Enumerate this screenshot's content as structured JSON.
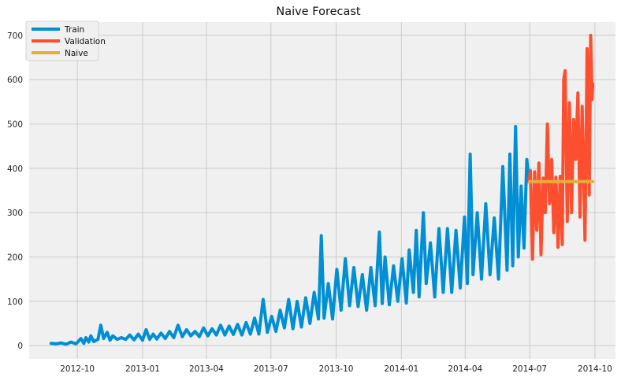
{
  "chart_data": {
    "type": "line",
    "title": "Naive Forecast",
    "xlabel": "",
    "ylabel": "",
    "x_type": "date",
    "xlim": [
      "2012-07-25",
      "2014-10-30"
    ],
    "ylim": [
      -30,
      730
    ],
    "x_ticks": [
      {
        "date": "2012-10-01",
        "label": "2012-10"
      },
      {
        "date": "2013-01-01",
        "label": "2013-01"
      },
      {
        "date": "2013-04-01",
        "label": "2013-04"
      },
      {
        "date": "2013-07-01",
        "label": "2013-07"
      },
      {
        "date": "2013-10-01",
        "label": "2013-10"
      },
      {
        "date": "2014-01-01",
        "label": "2014-01"
      },
      {
        "date": "2014-04-01",
        "label": "2014-04"
      },
      {
        "date": "2014-07-01",
        "label": "2014-07"
      },
      {
        "date": "2014-10-01",
        "label": "2014-10"
      }
    ],
    "y_ticks": [
      0,
      100,
      200,
      300,
      400,
      500,
      600,
      700
    ],
    "grid": true,
    "legend_position": "top-left",
    "series": [
      {
        "name": "Train",
        "color": "#008fd5",
        "points": [
          [
            "2012-08-25",
            5
          ],
          [
            "2012-09-01",
            4
          ],
          [
            "2012-09-08",
            6
          ],
          [
            "2012-09-15",
            3
          ],
          [
            "2012-09-22",
            8
          ],
          [
            "2012-09-29",
            4
          ],
          [
            "2012-10-06",
            16
          ],
          [
            "2012-10-10",
            5
          ],
          [
            "2012-10-13",
            18
          ],
          [
            "2012-10-17",
            8
          ],
          [
            "2012-10-20",
            22
          ],
          [
            "2012-10-24",
            9
          ],
          [
            "2012-10-30",
            14
          ],
          [
            "2012-11-03",
            46
          ],
          [
            "2012-11-07",
            16
          ],
          [
            "2012-11-12",
            30
          ],
          [
            "2012-11-16",
            12
          ],
          [
            "2012-11-20",
            22
          ],
          [
            "2012-11-26",
            14
          ],
          [
            "2012-12-02",
            18
          ],
          [
            "2012-12-08",
            14
          ],
          [
            "2012-12-14",
            24
          ],
          [
            "2012-12-20",
            13
          ],
          [
            "2012-12-26",
            26
          ],
          [
            "2013-01-01",
            12
          ],
          [
            "2013-01-06",
            36
          ],
          [
            "2013-01-11",
            14
          ],
          [
            "2013-01-16",
            26
          ],
          [
            "2013-01-21",
            15
          ],
          [
            "2013-01-27",
            28
          ],
          [
            "2013-02-02",
            16
          ],
          [
            "2013-02-08",
            32
          ],
          [
            "2013-02-14",
            18
          ],
          [
            "2013-02-20",
            46
          ],
          [
            "2013-02-26",
            20
          ],
          [
            "2013-03-04",
            36
          ],
          [
            "2013-03-10",
            22
          ],
          [
            "2013-03-16",
            32
          ],
          [
            "2013-03-22",
            20
          ],
          [
            "2013-03-28",
            40
          ],
          [
            "2013-04-03",
            22
          ],
          [
            "2013-04-09",
            38
          ],
          [
            "2013-04-15",
            24
          ],
          [
            "2013-04-21",
            46
          ],
          [
            "2013-04-27",
            24
          ],
          [
            "2013-05-03",
            44
          ],
          [
            "2013-05-09",
            25
          ],
          [
            "2013-05-15",
            48
          ],
          [
            "2013-05-21",
            24
          ],
          [
            "2013-05-27",
            52
          ],
          [
            "2013-06-02",
            26
          ],
          [
            "2013-06-08",
            62
          ],
          [
            "2013-06-14",
            26
          ],
          [
            "2013-06-20",
            104
          ],
          [
            "2013-06-26",
            30
          ],
          [
            "2013-07-02",
            66
          ],
          [
            "2013-07-08",
            32
          ],
          [
            "2013-07-14",
            80
          ],
          [
            "2013-07-20",
            40
          ],
          [
            "2013-07-26",
            104
          ],
          [
            "2013-08-01",
            38
          ],
          [
            "2013-08-07",
            100
          ],
          [
            "2013-08-13",
            42
          ],
          [
            "2013-08-19",
            108
          ],
          [
            "2013-08-25",
            50
          ],
          [
            "2013-08-31",
            120
          ],
          [
            "2013-09-06",
            60
          ],
          [
            "2013-09-10",
            248
          ],
          [
            "2013-09-14",
            62
          ],
          [
            "2013-09-20",
            140
          ],
          [
            "2013-09-26",
            60
          ],
          [
            "2013-10-02",
            172
          ],
          [
            "2013-10-08",
            80
          ],
          [
            "2013-10-14",
            196
          ],
          [
            "2013-10-20",
            90
          ],
          [
            "2013-10-26",
            176
          ],
          [
            "2013-11-01",
            88
          ],
          [
            "2013-11-07",
            160
          ],
          [
            "2013-11-13",
            80
          ],
          [
            "2013-11-19",
            176
          ],
          [
            "2013-11-25",
            90
          ],
          [
            "2013-12-01",
            256
          ],
          [
            "2013-12-05",
            95
          ],
          [
            "2013-12-09",
            200
          ],
          [
            "2013-12-15",
            92
          ],
          [
            "2013-12-21",
            180
          ],
          [
            "2013-12-27",
            100
          ],
          [
            "2014-01-02",
            196
          ],
          [
            "2014-01-08",
            96
          ],
          [
            "2014-01-12",
            216
          ],
          [
            "2014-01-18",
            120
          ],
          [
            "2014-01-22",
            260
          ],
          [
            "2014-01-26",
            110
          ],
          [
            "2014-02-01",
            300
          ],
          [
            "2014-02-05",
            140
          ],
          [
            "2014-02-11",
            232
          ],
          [
            "2014-02-17",
            110
          ],
          [
            "2014-02-23",
            264
          ],
          [
            "2014-03-01",
            120
          ],
          [
            "2014-03-07",
            264
          ],
          [
            "2014-03-13",
            120
          ],
          [
            "2014-03-19",
            260
          ],
          [
            "2014-03-25",
            130
          ],
          [
            "2014-03-31",
            290
          ],
          [
            "2014-04-04",
            140
          ],
          [
            "2014-04-08",
            432
          ],
          [
            "2014-04-12",
            160
          ],
          [
            "2014-04-18",
            300
          ],
          [
            "2014-04-24",
            150
          ],
          [
            "2014-04-30",
            320
          ],
          [
            "2014-05-06",
            160
          ],
          [
            "2014-05-12",
            288
          ],
          [
            "2014-05-18",
            150
          ],
          [
            "2014-05-24",
            404
          ],
          [
            "2014-05-30",
            170
          ],
          [
            "2014-06-03",
            432
          ],
          [
            "2014-06-07",
            180
          ],
          [
            "2014-06-11",
            494
          ],
          [
            "2014-06-15",
            200
          ],
          [
            "2014-06-19",
            360
          ],
          [
            "2014-06-23",
            220
          ],
          [
            "2014-06-27",
            420
          ],
          [
            "2014-06-30",
            370
          ]
        ]
      },
      {
        "name": "Validation",
        "color": "#fc4f30",
        "points": [
          [
            "2014-06-30",
            370
          ],
          [
            "2014-07-02",
            395
          ],
          [
            "2014-07-05",
            195
          ],
          [
            "2014-07-08",
            392
          ],
          [
            "2014-07-11",
            260
          ],
          [
            "2014-07-14",
            412
          ],
          [
            "2014-07-17",
            205
          ],
          [
            "2014-07-20",
            378
          ],
          [
            "2014-07-23",
            300
          ],
          [
            "2014-07-26",
            500
          ],
          [
            "2014-07-29",
            320
          ],
          [
            "2014-08-01",
            420
          ],
          [
            "2014-08-04",
            255
          ],
          [
            "2014-08-07",
            380
          ],
          [
            "2014-08-10",
            222
          ],
          [
            "2014-08-13",
            382
          ],
          [
            "2014-08-16",
            228
          ],
          [
            "2014-08-18",
            600
          ],
          [
            "2014-08-20",
            620
          ],
          [
            "2014-08-23",
            280
          ],
          [
            "2014-08-26",
            548
          ],
          [
            "2014-08-29",
            300
          ],
          [
            "2014-09-01",
            510
          ],
          [
            "2014-09-04",
            420
          ],
          [
            "2014-09-07",
            570
          ],
          [
            "2014-09-10",
            290
          ],
          [
            "2014-09-13",
            540
          ],
          [
            "2014-09-17",
            238
          ],
          [
            "2014-09-20",
            670
          ],
          [
            "2014-09-23",
            340
          ],
          [
            "2014-09-25",
            700
          ],
          [
            "2014-09-27",
            555
          ],
          [
            "2014-09-28",
            590
          ]
        ]
      },
      {
        "name": "Naive",
        "color": "#e5ae38",
        "points": [
          [
            "2014-07-01",
            370
          ],
          [
            "2014-09-28",
            370
          ]
        ]
      }
    ]
  }
}
